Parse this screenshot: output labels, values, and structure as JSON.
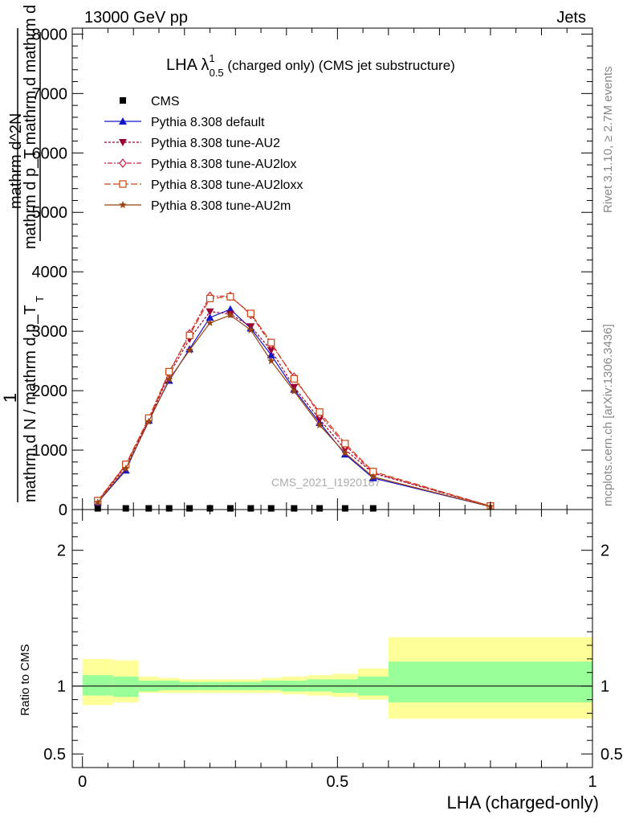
{
  "header": {
    "left_title": "13000 GeV pp",
    "right_title": "Jets"
  },
  "side": {
    "rivet_label": "Rivet 3.1.10, ≥ 2.7M events",
    "mcplots_label": "mcplots.cern.ch [arXiv:1306.3436]"
  },
  "chart_data": {
    "type": "line",
    "title": "LHA λ",
    "title_sup": "1",
    "title_sub": "0.5",
    "title_rest": " (charged only) (CMS jet substructure)",
    "watermark": "CMS_2021_I1920187",
    "ylabel_num_top": "mathrm d^2N",
    "ylabel_num_bottom": "mathrm d p_T mathrm d mathrm d lambda",
    "ylabel_frac_one": "1",
    "ylabel_den": "mathrm d N / mathrm d p_T",
    "ylabel_den_sub": "T",
    "xlabel": "LHA (charged-only)",
    "ratio_ylabel": "Ratio to CMS",
    "main_yticks": [
      "0",
      "1000",
      "2000",
      "3000",
      "4000",
      "5000",
      "6000",
      "7000",
      "8000"
    ],
    "main_ylim": [
      0,
      8100
    ],
    "ratio_yticks": [
      "0.5",
      "1",
      "2"
    ],
    "ratio_ylim": [
      0.4,
      2.3
    ],
    "xticks": [
      "0",
      "0.5",
      "1"
    ],
    "xlim": [
      -0.02,
      1.0
    ],
    "x": [
      0.03,
      0.085,
      0.13,
      0.17,
      0.21,
      0.25,
      0.29,
      0.33,
      0.37,
      0.415,
      0.465,
      0.515,
      0.57,
      0.8
    ],
    "series": [
      {
        "name": "CMS",
        "color": "#000000",
        "marker": "square",
        "dash": "",
        "values": [
          20,
          20,
          20,
          20,
          20,
          20,
          20,
          20,
          20,
          20,
          20,
          20,
          20,
          null
        ]
      },
      {
        "name": "Pythia 8.308 default",
        "color": "#1414c8",
        "marker": "triangle-up",
        "dash": "",
        "values": [
          120,
          660,
          1500,
          2170,
          2700,
          3230,
          3370,
          3050,
          2600,
          2020,
          1460,
          930,
          530,
          50
        ]
      },
      {
        "name": "Pythia 8.308 tune-AU2",
        "color": "#990033",
        "marker": "triangle-down",
        "dash": "3,2",
        "values": [
          130,
          730,
          1500,
          2270,
          2870,
          3330,
          3290,
          3080,
          2680,
          2060,
          1520,
          1010,
          610,
          55
        ]
      },
      {
        "name": "Pythia 8.308 tune-AU2lox",
        "color": "#cc2244",
        "marker": "diamond",
        "dash": "2,2,6,2",
        "values": [
          140,
          750,
          1520,
          2300,
          2960,
          3590,
          3590,
          3280,
          2780,
          2230,
          1600,
          1080,
          620,
          60
        ]
      },
      {
        "name": "Pythia 8.308 tune-AU2loxx",
        "color": "#cc4411",
        "marker": "open-square",
        "dash": "8,3",
        "values": [
          150,
          760,
          1540,
          2320,
          2930,
          3550,
          3580,
          3300,
          2810,
          2200,
          1640,
          1110,
          640,
          60
        ]
      },
      {
        "name": "Pythia 8.308 tune-AU2m",
        "color": "#994411",
        "marker": "star",
        "dash": "",
        "values": [
          120,
          690,
          1480,
          2190,
          2680,
          3140,
          3270,
          3020,
          2500,
          1990,
          1420,
          950,
          550,
          50
        ]
      }
    ],
    "ratio_bands": [
      {
        "x0": 0.0,
        "x1": 0.06,
        "inner": [
          0.93,
          1.08
        ],
        "outer": [
          0.86,
          1.2
        ]
      },
      {
        "x0": 0.06,
        "x1": 0.11,
        "inner": [
          0.92,
          1.07
        ],
        "outer": [
          0.88,
          1.19
        ]
      },
      {
        "x0": 0.11,
        "x1": 0.15,
        "inner": [
          0.96,
          1.04
        ],
        "outer": [
          0.95,
          1.07
        ]
      },
      {
        "x0": 0.15,
        "x1": 0.19,
        "inner": [
          0.97,
          1.04
        ],
        "outer": [
          0.95,
          1.06
        ]
      },
      {
        "x0": 0.19,
        "x1": 0.23,
        "inner": [
          0.97,
          1.03
        ],
        "outer": [
          0.95,
          1.05
        ]
      },
      {
        "x0": 0.23,
        "x1": 0.27,
        "inner": [
          0.97,
          1.03
        ],
        "outer": [
          0.95,
          1.05
        ]
      },
      {
        "x0": 0.27,
        "x1": 0.31,
        "inner": [
          0.97,
          1.03
        ],
        "outer": [
          0.95,
          1.05
        ]
      },
      {
        "x0": 0.31,
        "x1": 0.35,
        "inner": [
          0.97,
          1.03
        ],
        "outer": [
          0.95,
          1.05
        ]
      },
      {
        "x0": 0.35,
        "x1": 0.39,
        "inner": [
          0.97,
          1.04
        ],
        "outer": [
          0.95,
          1.06
        ]
      },
      {
        "x0": 0.39,
        "x1": 0.44,
        "inner": [
          0.96,
          1.04
        ],
        "outer": [
          0.94,
          1.07
        ]
      },
      {
        "x0": 0.44,
        "x1": 0.49,
        "inner": [
          0.96,
          1.05
        ],
        "outer": [
          0.93,
          1.08
        ]
      },
      {
        "x0": 0.49,
        "x1": 0.54,
        "inner": [
          0.95,
          1.05
        ],
        "outer": [
          0.92,
          1.09
        ]
      },
      {
        "x0": 0.54,
        "x1": 0.6,
        "inner": [
          0.93,
          1.07
        ],
        "outer": [
          0.9,
          1.13
        ]
      },
      {
        "x0": 0.6,
        "x1": 1.0,
        "inner": [
          0.88,
          1.18
        ],
        "outer": [
          0.76,
          1.36
        ]
      }
    ],
    "colors": {
      "inner_band": "#99ff99",
      "outer_band": "#ffff99"
    },
    "legend_position": "top-left"
  }
}
